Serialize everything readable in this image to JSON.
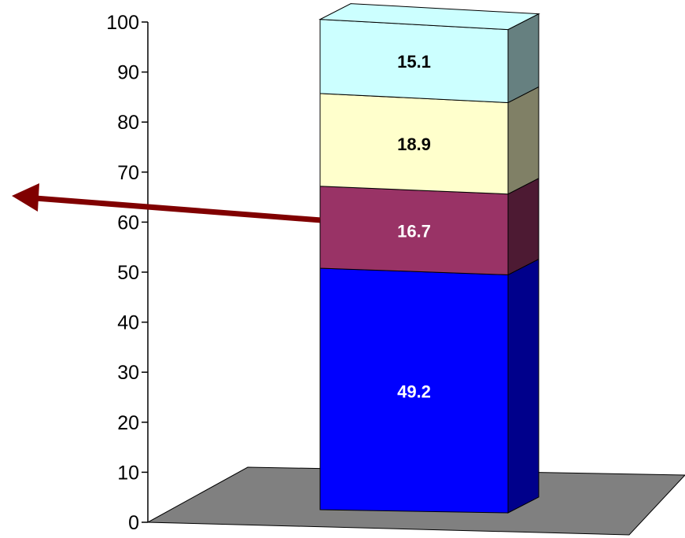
{
  "chart_data": {
    "type": "bar",
    "subtype": "stacked-3d",
    "categories": [
      ""
    ],
    "series": [
      {
        "values": [
          49.2
        ],
        "color": "#0000ff",
        "side_color": "#00008b",
        "label_color": "#ffffff"
      },
      {
        "values": [
          16.7
        ],
        "color": "#993366",
        "side_color": "#4d1a33",
        "label_color": "#ffffff"
      },
      {
        "values": [
          18.9
        ],
        "color": "#ffffcc",
        "side_color": "#808066",
        "label_color": "#000000"
      },
      {
        "values": [
          15.1
        ],
        "color": "#ccffff",
        "side_color": "#668080",
        "label_color": "#000000"
      }
    ],
    "data_labels": [
      "49.2",
      "16.7",
      "18.9",
      "15.1"
    ],
    "ylim": [
      0,
      100
    ],
    "y_ticks": [
      0,
      10,
      20,
      30,
      40,
      50,
      60,
      70,
      80,
      90,
      100
    ],
    "y_tick_labels": [
      "0",
      "10",
      "20",
      "30",
      "40",
      "50",
      "60",
      "70",
      "80",
      "90",
      "100"
    ],
    "grid": false,
    "legend": "none",
    "floor_color": "#808080",
    "annotation": {
      "shape": "arrow",
      "color": "#800000",
      "points_at_series": 1,
      "direction": "left"
    }
  }
}
